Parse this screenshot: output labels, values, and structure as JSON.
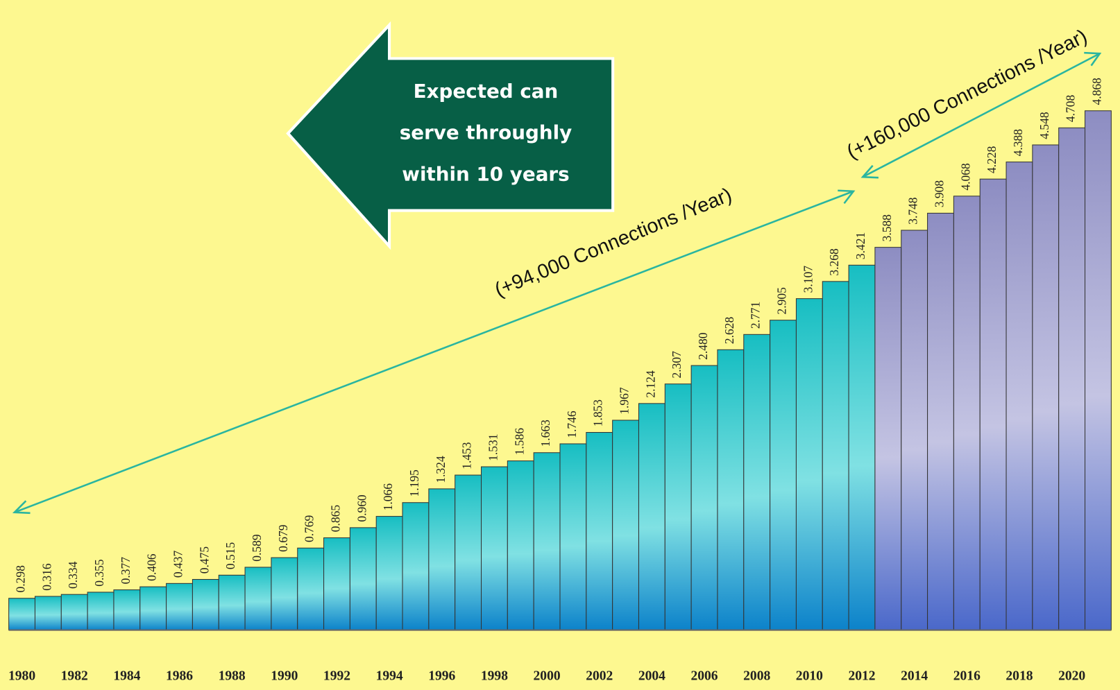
{
  "chart_data": {
    "type": "bar",
    "categories": [
      "1980",
      null,
      "1982",
      null,
      "1984",
      null,
      "1986",
      null,
      "1988",
      null,
      "1990",
      null,
      "1992",
      null,
      "1994",
      null,
      "1996",
      null,
      "1998",
      null,
      "2000",
      null,
      "2002",
      null,
      "2004",
      null,
      "2006",
      null,
      "2008",
      null,
      "2010",
      null,
      "2012",
      null,
      "2014",
      null,
      "2016",
      null,
      "2018",
      null,
      "2020",
      null
    ],
    "values": [
      0.298,
      0.316,
      0.334,
      0.355,
      0.377,
      0.406,
      0.437,
      0.475,
      0.515,
      0.589,
      0.679,
      0.769,
      0.865,
      0.96,
      1.066,
      1.195,
      1.324,
      1.453,
      1.531,
      1.586,
      1.663,
      1.746,
      1.853,
      1.967,
      2.124,
      2.307,
      2.48,
      2.628,
      2.771,
      2.905,
      3.107,
      3.268,
      3.421,
      3.588,
      3.748,
      3.908,
      4.068,
      4.228,
      4.388,
      4.548,
      4.708,
      4.868
    ],
    "value_labels": [
      "0.298",
      "0.316",
      "0.334",
      "0.355",
      "0.377",
      "0.406",
      "0.437",
      "0.475",
      "0.515",
      "0.589",
      "0.679",
      "0.769",
      "0.865",
      "0.960",
      "1.066",
      "1.195",
      "1.324",
      "1.453",
      "1.531",
      "1.586",
      "1.663",
      "1.746",
      "1.853",
      "1.967",
      "2.124",
      "2.307",
      "2.480",
      "2.628",
      "2.771",
      "2.905",
      "3.107",
      "3.268",
      "3.421",
      "3.588",
      "3.748",
      "3.908",
      "4.068",
      "4.228",
      "4.388",
      "4.548",
      "4.708",
      "4.868"
    ],
    "colors": [
      "#18c8cc",
      "#18c8cc",
      "#18c8cc",
      "#18c8cc",
      "#18c8cc",
      "#18c8cc",
      "#18c8cc",
      "#18c8cc",
      "#18c8cc",
      "#18c8cc",
      "#18c8cc",
      "#18c8cc",
      "#18c8cc",
      "#18c8cc",
      "#18c8cc",
      "#18c8cc",
      "#18c8cc",
      "#18c8cc",
      "#18c8cc",
      "#18c8cc",
      "#18c8cc",
      "#18c8cc",
      "#18c8cc",
      "#18c8cc",
      "#18c8cc",
      "#18c8cc",
      "#18c8cc",
      "#18c8cc",
      "#18c8cc",
      "#18c8cc",
      "#18c8cc",
      "#18c8cc",
      "#18c8cc",
      "#9494cc",
      "#9494cc",
      "#9494cc",
      "#9494cc",
      "#9494cc",
      "#9494cc",
      "#9494cc",
      "#9494cc",
      "#9494cc"
    ],
    "annotations": [
      "Expected can",
      "serve throughly",
      "within 10 years",
      "(+94,000 Connections /Year)",
      "(+160,000 Connections /Year)"
    ]
  }
}
